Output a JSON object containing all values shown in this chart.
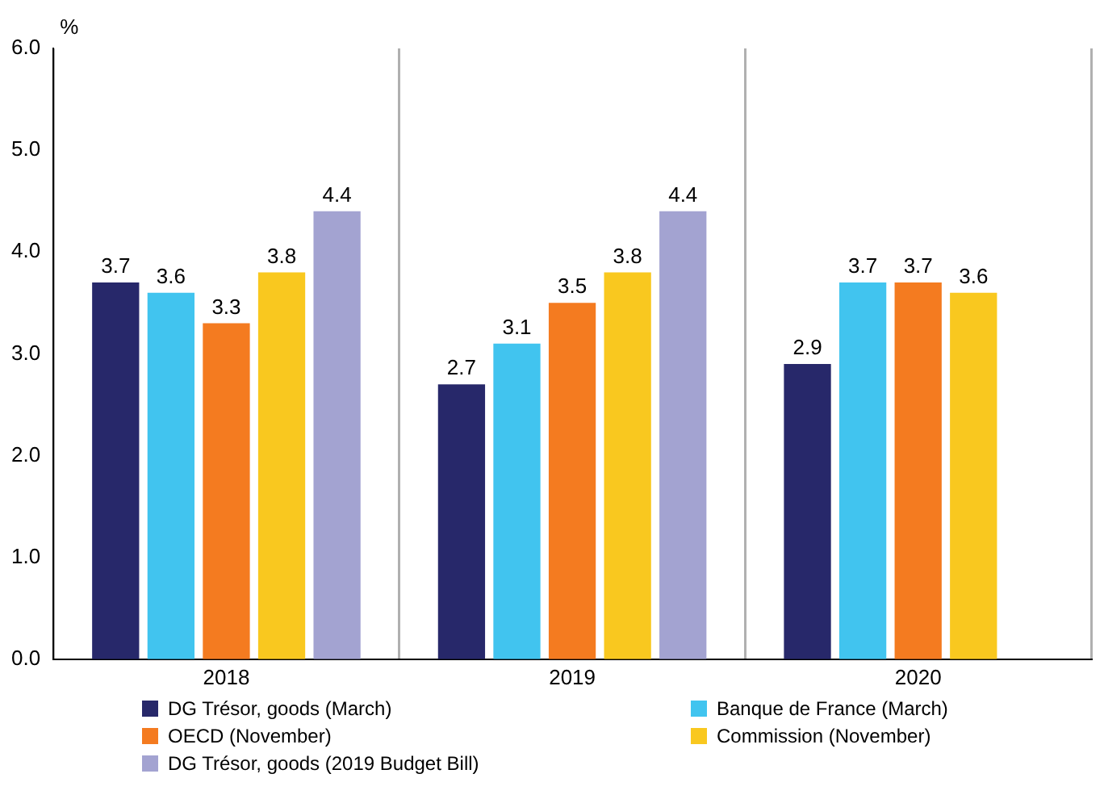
{
  "chart_data": {
    "type": "bar",
    "ylabel": "%",
    "categories": [
      "2018",
      "2019",
      "2020"
    ],
    "series": [
      {
        "name": "DG Trésor, goods (March)",
        "color": "#27286a",
        "values": [
          3.7,
          2.7,
          2.9
        ]
      },
      {
        "name": "Banque de France (March)",
        "color": "#41c4ef",
        "values": [
          3.6,
          3.1,
          3.7
        ]
      },
      {
        "name": "OECD (November)",
        "color": "#f47b20",
        "values": [
          3.3,
          3.5,
          3.7
        ]
      },
      {
        "name": "Commission (November)",
        "color": "#f9c81f",
        "values": [
          3.8,
          3.8,
          3.6
        ]
      },
      {
        "name": "DG Trésor, goods (2019 Budget Bill)",
        "color": "#a3a3d1",
        "values": [
          4.4,
          4.4,
          null
        ]
      }
    ],
    "ylim": [
      0,
      6
    ],
    "yticks": [
      {
        "value": 0,
        "label": "0.0"
      },
      {
        "value": 1,
        "label": "1.0"
      },
      {
        "value": 2,
        "label": "2.0"
      },
      {
        "value": 3,
        "label": "3.0"
      },
      {
        "value": 4,
        "label": "4.0"
      },
      {
        "value": 5,
        "label": "5.0"
      },
      {
        "value": 6,
        "label": "6.0"
      }
    ],
    "grid": "x",
    "data_labels": true,
    "legend": "bottom"
  }
}
